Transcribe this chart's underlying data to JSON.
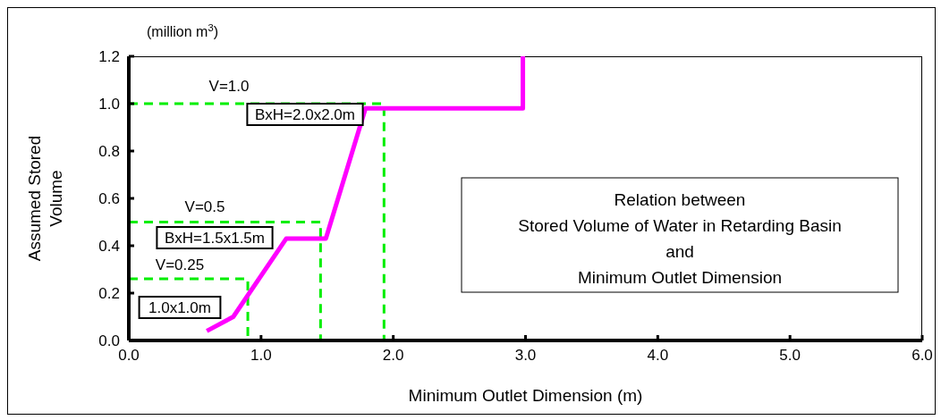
{
  "chart_data": {
    "type": "line",
    "title": "Relation between\nStored Volume of Water in Retarding Basin\nand\nMinimum Outlet Dimension",
    "xlabel": "Minimum Outlet Dimension (m)",
    "ylabel": "Assumed Stored\nVolume",
    "xlim": [
      0,
      6
    ],
    "xticks": [
      {
        "value": 0,
        "label": "0.0"
      },
      {
        "value": 1,
        "label": "1.0"
      },
      {
        "value": 2,
        "label": "2.0"
      },
      {
        "value": 3,
        "label": "3.0"
      },
      {
        "value": 4,
        "label": "4.0"
      },
      {
        "value": 5,
        "label": "5.0"
      },
      {
        "value": 6,
        "label": "6.0"
      }
    ],
    "ylim": [
      0,
      1.2
    ],
    "yticks": [
      {
        "value": 0,
        "label": "0.0"
      },
      {
        "value": 0.2,
        "label": "0.2"
      },
      {
        "value": 0.4,
        "label": "0.4"
      },
      {
        "value": 0.6,
        "label": "0.6"
      },
      {
        "value": 0.8,
        "label": "0.8"
      },
      {
        "value": 1,
        "label": "1.0"
      },
      {
        "value": 1.2,
        "label": "1.2"
      }
    ],
    "series": [
      {
        "color": "#00ee00",
        "line_style": "dashed",
        "x": [
          0,
          0.9,
          0.9
        ],
        "values": [
          0.26,
          0.26,
          0
        ]
      },
      {
        "color": "#00ee00",
        "line_style": "dashed",
        "x": [
          0,
          1.45,
          1.45
        ],
        "values": [
          0.5,
          0.5,
          0
        ]
      },
      {
        "color": "#00ee00",
        "line_style": "dashed",
        "x": [
          0,
          1.93,
          1.93
        ],
        "values": [
          1.0,
          1.0,
          0
        ]
      },
      {
        "color": "#ff00ff",
        "line_style": "solid",
        "x": [
          0.59,
          0.79,
          1.19,
          1.49,
          1.79,
          2.98,
          2.98
        ],
        "values": [
          0.04,
          0.1,
          0.43,
          0.43,
          0.98,
          0.98,
          1.2
        ]
      }
    ],
    "annotations": [
      "(million m$^{3}$)",
      "V=1.0",
      "BxH=2.0x2.0m",
      "V=0.5",
      "BxH=1.5x1.5m",
      "V=0.25",
      "1.0x1.0m"
    ]
  }
}
